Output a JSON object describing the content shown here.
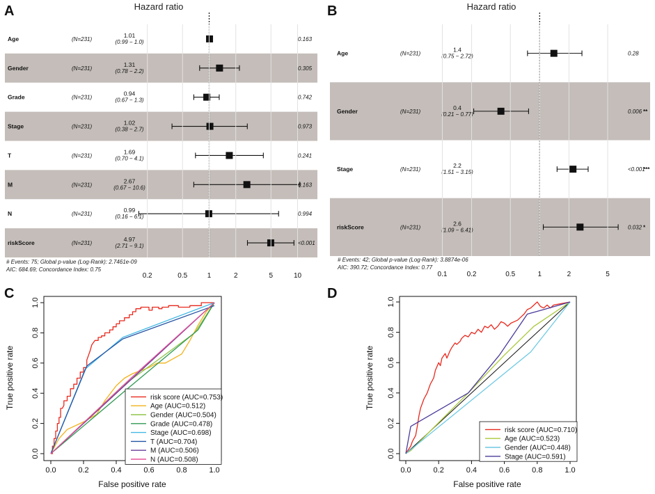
{
  "panels": [
    {
      "letter": "A"
    },
    {
      "letter": "B"
    },
    {
      "letter": "C"
    },
    {
      "letter": "D"
    }
  ],
  "chart_data": [
    {
      "type": "forest",
      "panel": "A",
      "title": "Hazard ratio",
      "xscale": "log",
      "xlim": [
        0.14,
        13
      ],
      "xticks": [
        0.2,
        0.5,
        1,
        2,
        5,
        10
      ],
      "xtick_labels": [
        "0.2",
        "0.5",
        "1",
        "2",
        "5",
        "10"
      ],
      "reference_line": 1,
      "rows": [
        {
          "label": "Age",
          "n": "(N=231)",
          "hr_text": "1.01",
          "ci_text": "(0.99 − 1.0)",
          "hr": 1.01,
          "lo": 0.99,
          "hi": 1.02,
          "p": "0.163",
          "sig": "",
          "shaded": false
        },
        {
          "label": "Gender",
          "n": "(N=231)",
          "hr_text": "1.31",
          "ci_text": "(0.78 − 2.2)",
          "hr": 1.31,
          "lo": 0.78,
          "hi": 2.2,
          "p": "0.305",
          "sig": "",
          "shaded": true
        },
        {
          "label": "Grade",
          "n": "(N=231)",
          "hr_text": "0.94",
          "ci_text": "(0.67 − 1.3)",
          "hr": 0.94,
          "lo": 0.67,
          "hi": 1.3,
          "p": "0.742",
          "sig": "",
          "shaded": false
        },
        {
          "label": "Stage",
          "n": "(N=231)",
          "hr_text": "1.02",
          "ci_text": "(0.38 − 2.7)",
          "hr": 1.02,
          "lo": 0.38,
          "hi": 2.7,
          "p": "0.973",
          "sig": "",
          "shaded": true
        },
        {
          "label": "T",
          "n": "(N=231)",
          "hr_text": "1.69",
          "ci_text": "(0.70 − 4.1)",
          "hr": 1.69,
          "lo": 0.7,
          "hi": 4.1,
          "p": "0.241",
          "sig": "",
          "shaded": false
        },
        {
          "label": "M",
          "n": "(N=231)",
          "hr_text": "2.67",
          "ci_text": "(0.67 − 10.6)",
          "hr": 2.67,
          "lo": 0.67,
          "hi": 10.6,
          "p": "0.163",
          "sig": "",
          "shaded": true
        },
        {
          "label": "N",
          "n": "(N=231)",
          "hr_text": "0.99",
          "ci_text": "(0.16 − 6.1)",
          "hr": 0.99,
          "lo": 0.16,
          "hi": 6.1,
          "p": "0.994",
          "sig": "",
          "shaded": false
        },
        {
          "label": "riskScore",
          "n": "(N=231)",
          "hr_text": "4.97",
          "ci_text": "(2.71 − 9.1)",
          "hr": 4.97,
          "lo": 2.71,
          "hi": 9.1,
          "p": "<0.001",
          "sig": "",
          "shaded": true
        }
      ],
      "footnote1": "# Events: 75; Global p-value (Log-Rank): 2.7461e-09",
      "footnote2": "AIC: 684.69; Concordance Index: 0.75"
    },
    {
      "type": "forest",
      "panel": "B",
      "title": "Hazard ratio",
      "xscale": "log",
      "xlim": [
        0.075,
        9.5
      ],
      "xticks": [
        0.1,
        0.2,
        0.5,
        1,
        2,
        5
      ],
      "xtick_labels": [
        "0.1",
        "0.2",
        "0.5",
        "1",
        "2",
        "5"
      ],
      "reference_line": 1,
      "rows": [
        {
          "label": "Age",
          "n": "(N=231)",
          "hr_text": "1.4",
          "ci_text": "(0.75 − 2.72)",
          "hr": 1.4,
          "lo": 0.75,
          "hi": 2.72,
          "p": "0.28",
          "sig": "",
          "shaded": false
        },
        {
          "label": "Gender",
          "n": "(N=231)",
          "hr_text": "0.4",
          "ci_text": "(0.21 − 0.77)",
          "hr": 0.4,
          "lo": 0.21,
          "hi": 0.77,
          "p": "0.006",
          "sig": "**",
          "shaded": true
        },
        {
          "label": "Stage",
          "n": "(N=231)",
          "hr_text": "2.2",
          "ci_text": "(1.51 − 3.15)",
          "hr": 2.2,
          "lo": 1.51,
          "hi": 3.15,
          "p": "<0.001",
          "sig": "***",
          "shaded": false
        },
        {
          "label": "riskScore",
          "n": "(N=231)",
          "hr_text": "2.6",
          "ci_text": "(1.09 − 6.41)",
          "hr": 2.6,
          "lo": 1.09,
          "hi": 6.41,
          "p": "0.032",
          "sig": "*",
          "shaded": true
        }
      ],
      "footnote1": "# Events: 42; Global p-value (Log-Rank): 3.8874e-06",
      "footnote2": "AIC: 390.72; Concordance Index: 0.77"
    },
    {
      "type": "line",
      "panel": "C",
      "xlabel": "False positive rate",
      "ylabel": "True positive rate",
      "xlim": [
        0,
        1
      ],
      "ylim": [
        0,
        1
      ],
      "xticks": [
        0.0,
        0.2,
        0.4,
        0.6,
        0.8,
        1.0
      ],
      "yticks": [
        0.0,
        0.2,
        0.4,
        0.6,
        0.8,
        1.0
      ],
      "tick_labels": [
        "0.0",
        "0.2",
        "0.4",
        "0.6",
        "0.8",
        "1.0"
      ],
      "legend_position": "bottom-right",
      "series": [
        {
          "name": "risk score (AUC=0.753)",
          "color": "#e8281d",
          "x": [
            0,
            0.01,
            0.01,
            0.02,
            0.02,
            0.03,
            0.03,
            0.04,
            0.04,
            0.05,
            0.05,
            0.06,
            0.06,
            0.07,
            0.08,
            0.08,
            0.1,
            0.1,
            0.12,
            0.12,
            0.14,
            0.14,
            0.16,
            0.16,
            0.18,
            0.18,
            0.2,
            0.2,
            0.22,
            0.22,
            0.24,
            0.25,
            0.27,
            0.29,
            0.29,
            0.31,
            0.31,
            0.33,
            0.33,
            0.36,
            0.36,
            0.38,
            0.38,
            0.4,
            0.4,
            0.42,
            0.42,
            0.45,
            0.45,
            0.48,
            0.48,
            0.5,
            0.5,
            0.52,
            0.52,
            0.55,
            0.55,
            0.6,
            0.6,
            0.62,
            0.62,
            0.66,
            0.66,
            0.68,
            0.68,
            0.72,
            0.72,
            0.78,
            0.78,
            0.85,
            0.85,
            0.92,
            0.92,
            1.0
          ],
          "y": [
            0,
            0,
            0.05,
            0.05,
            0.1,
            0.1,
            0.15,
            0.15,
            0.2,
            0.2,
            0.24,
            0.24,
            0.3,
            0.3,
            0.32,
            0.35,
            0.35,
            0.38,
            0.38,
            0.43,
            0.43,
            0.46,
            0.46,
            0.5,
            0.5,
            0.54,
            0.54,
            0.57,
            0.57,
            0.62,
            0.68,
            0.72,
            0.75,
            0.75,
            0.77,
            0.77,
            0.78,
            0.78,
            0.8,
            0.8,
            0.82,
            0.82,
            0.84,
            0.84,
            0.86,
            0.86,
            0.88,
            0.88,
            0.9,
            0.9,
            0.92,
            0.92,
            0.94,
            0.94,
            0.96,
            0.96,
            0.97,
            0.97,
            0.95,
            0.95,
            0.97,
            0.97,
            0.96,
            0.96,
            0.97,
            0.97,
            0.98,
            0.98,
            0.97,
            0.97,
            0.98,
            0.98,
            1.0,
            1.0
          ]
        },
        {
          "name": "Age (AUC=0.512)",
          "color": "#f2b21a",
          "x": [
            0,
            0.05,
            0.1,
            0.2,
            0.28,
            0.33,
            0.4,
            0.45,
            0.5,
            0.55,
            0.6,
            0.65,
            0.7,
            0.75,
            0.8,
            0.85,
            0.9,
            0.95,
            1.0
          ],
          "y": [
            0,
            0.1,
            0.16,
            0.21,
            0.26,
            0.35,
            0.45,
            0.5,
            0.53,
            0.55,
            0.57,
            0.6,
            0.6,
            0.63,
            0.66,
            0.75,
            0.85,
            0.94,
            1.0
          ]
        },
        {
          "name": "Gender (AUC=0.504)",
          "color": "#8fc34a",
          "x": [
            0,
            0.44,
            0.88,
            1.0
          ],
          "y": [
            0,
            0.45,
            0.8,
            1.0
          ]
        },
        {
          "name": "Grade (AUC=0.478)",
          "color": "#2f9a52",
          "x": [
            0,
            0.48,
            0.9,
            1.0
          ],
          "y": [
            0,
            0.44,
            0.82,
            1.0
          ]
        },
        {
          "name": "Stage (AUC=0.698)",
          "color": "#43b8e4",
          "x": [
            0,
            0.21,
            0.44,
            1.0
          ],
          "y": [
            0,
            0.56,
            0.77,
            1.0
          ]
        },
        {
          "name": "T (AUC=0.704)",
          "color": "#2553a4",
          "x": [
            0,
            0.22,
            0.44,
            1.0
          ],
          "y": [
            0,
            0.58,
            0.76,
            0.98
          ]
        },
        {
          "name": "M (AUC=0.506)",
          "color": "#6a3d9a",
          "x": [
            0,
            0.98,
            1.0
          ],
          "y": [
            0,
            0.98,
            1.0
          ]
        },
        {
          "name": "N (AUC=0.508)",
          "color": "#e7549a",
          "x": [
            0,
            0.49,
            0.99,
            1.0
          ],
          "y": [
            0,
            0.5,
            0.99,
            1.0
          ]
        }
      ]
    },
    {
      "type": "line",
      "panel": "D",
      "xlabel": "False positive rate",
      "ylabel": "True positive rate",
      "xlim": [
        0,
        1
      ],
      "ylim": [
        0,
        1
      ],
      "xticks": [
        0.0,
        0.2,
        0.4,
        0.6,
        0.8,
        1.0
      ],
      "yticks": [
        0.0,
        0.2,
        0.4,
        0.6,
        0.8,
        1.0
      ],
      "tick_labels": [
        "0.0",
        "0.2",
        "0.4",
        "0.6",
        "0.8",
        "1.0"
      ],
      "legend_position": "bottom-right",
      "series": [
        {
          "name": "risk score (AUC=0.710)",
          "color": "#e8281d",
          "x": [
            0,
            0.03,
            0.04,
            0.06,
            0.07,
            0.08,
            0.09,
            0.1,
            0.11,
            0.12,
            0.13,
            0.14,
            0.15,
            0.16,
            0.17,
            0.18,
            0.2,
            0.21,
            0.22,
            0.24,
            0.25,
            0.27,
            0.28,
            0.3,
            0.31,
            0.33,
            0.34,
            0.36,
            0.38,
            0.4,
            0.42,
            0.44,
            0.46,
            0.48,
            0.5,
            0.52,
            0.54,
            0.56,
            0.58,
            0.6,
            0.62,
            0.64,
            0.66,
            0.68,
            0.7,
            0.72,
            0.74,
            0.76,
            0.78,
            0.8,
            0.82,
            0.84,
            0.86,
            0.88,
            0.9,
            1.0
          ],
          "y": [
            0,
            0.05,
            0.08,
            0.12,
            0.18,
            0.25,
            0.3,
            0.33,
            0.36,
            0.38,
            0.4,
            0.43,
            0.46,
            0.48,
            0.5,
            0.55,
            0.6,
            0.58,
            0.63,
            0.66,
            0.63,
            0.68,
            0.7,
            0.73,
            0.72,
            0.74,
            0.76,
            0.78,
            0.77,
            0.8,
            0.79,
            0.82,
            0.8,
            0.84,
            0.83,
            0.85,
            0.82,
            0.84,
            0.87,
            0.86,
            0.84,
            0.86,
            0.87,
            0.88,
            0.9,
            0.92,
            0.95,
            0.96,
            0.98,
            1.0,
            0.97,
            0.96,
            0.98,
            0.96,
            0.98,
            1.0
          ]
        },
        {
          "name": "Age (AUC=0.523)",
          "color": "#a8c83a",
          "x": [
            0,
            0.03,
            0.38,
            0.6,
            0.78,
            1.0
          ],
          "y": [
            0,
            0.02,
            0.4,
            0.65,
            0.84,
            1.0
          ]
        },
        {
          "name": "Gender (AUC=0.448)",
          "color": "#6ec9e4",
          "x": [
            0,
            0.76,
            1.0
          ],
          "y": [
            0,
            0.67,
            1.0
          ]
        },
        {
          "name": "Stage (AUC=0.591)",
          "color": "#4a3b9a",
          "x": [
            0,
            0.03,
            0.38,
            0.57,
            0.74,
            0.84,
            1.0
          ],
          "y": [
            0,
            0.18,
            0.4,
            0.65,
            0.92,
            0.95,
            1.0
          ]
        }
      ]
    }
  ]
}
